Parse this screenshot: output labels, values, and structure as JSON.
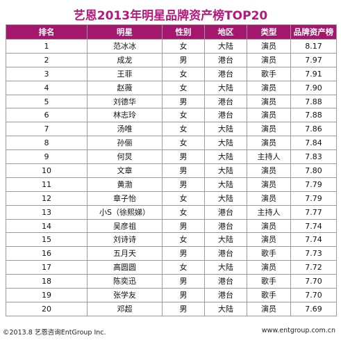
{
  "title": "艺恩2013年明星品牌资产榜TOP20",
  "colors": {
    "title": "#b5177a",
    "header_bg": "#a3176d",
    "header_text": "#ffffff"
  },
  "table": {
    "headers": [
      "排名",
      "明星",
      "性别",
      "地区",
      "类型",
      "品牌资产榜"
    ],
    "rows": [
      [
        "1",
        "范冰冰",
        "女",
        "大陆",
        "演员",
        "8.17"
      ],
      [
        "2",
        "成龙",
        "男",
        "港台",
        "演员",
        "7.97"
      ],
      [
        "3",
        "王菲",
        "女",
        "港台",
        "歌手",
        "7.91"
      ],
      [
        "4",
        "赵薇",
        "女",
        "大陆",
        "演员",
        "7.90"
      ],
      [
        "5",
        "刘德华",
        "男",
        "港台",
        "演员",
        "7.88"
      ],
      [
        "6",
        "林志玲",
        "女",
        "港台",
        "演员",
        "7.88"
      ],
      [
        "7",
        "汤唯",
        "女",
        "大陆",
        "演员",
        "7.86"
      ],
      [
        "8",
        "孙俪",
        "女",
        "大陆",
        "演员",
        "7.84"
      ],
      [
        "9",
        "何炅",
        "男",
        "大陆",
        "主持人",
        "7.83"
      ],
      [
        "10",
        "文章",
        "男",
        "大陆",
        "演员",
        "7.80"
      ],
      [
        "11",
        "黄渤",
        "男",
        "大陆",
        "演员",
        "7.79"
      ],
      [
        "12",
        "章子怡",
        "女",
        "大陆",
        "演员",
        "7.79"
      ],
      [
        "13",
        "小S（徐熙娣）",
        "女",
        "港台",
        "主持人",
        "7.77"
      ],
      [
        "14",
        "吴彦祖",
        "男",
        "港台",
        "演员",
        "7.74"
      ],
      [
        "15",
        "刘诗诗",
        "女",
        "大陆",
        "演员",
        "7.74"
      ],
      [
        "16",
        "五月天",
        "男",
        "港台",
        "歌手",
        "7.73"
      ],
      [
        "17",
        "高圆圆",
        "女",
        "大陆",
        "演员",
        "7.72"
      ],
      [
        "18",
        "陈奕迅",
        "男",
        "港台",
        "歌手",
        "7.70"
      ],
      [
        "19",
        "张学友",
        "男",
        "港台",
        "歌手",
        "7.70"
      ],
      [
        "20",
        "邓超",
        "男",
        "大陆",
        "演员",
        "7.69"
      ]
    ]
  },
  "footer": {
    "copyright": "©2013.8 艺恩咨询EntGroup Inc.",
    "website": "www.entgroup.com.cn"
  }
}
